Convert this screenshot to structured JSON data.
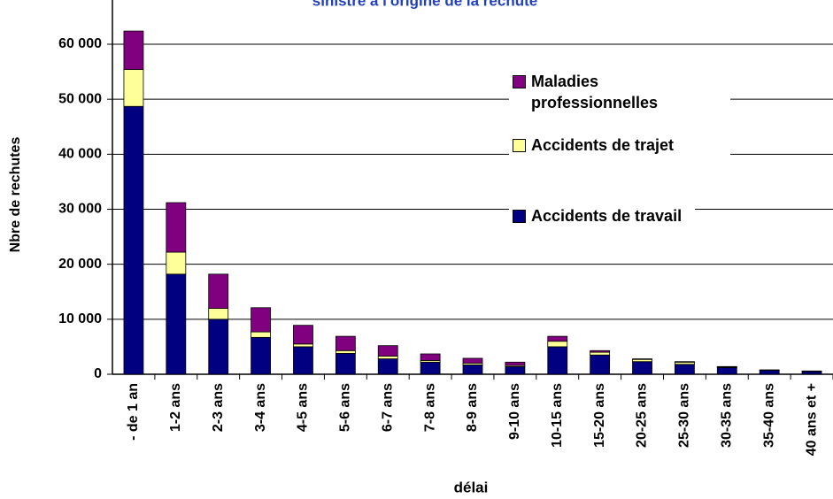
{
  "chart_data": {
    "type": "stacked_bar",
    "title": "sinistre à l'origine de la rechute",
    "x_label": "délai",
    "y_label": "Nbre de rechutes",
    "categories": [
      "- de 1 an",
      "1-2 ans",
      "2-3 ans",
      "3-4 ans",
      "4-5 ans",
      "5-6 ans",
      "6-7 ans",
      "7-8 ans",
      "8-9 ans",
      "9-10 ans",
      "10-15 ans",
      "15-20 ans",
      "20-25 ans",
      "25-30 ans",
      "30-35 ans",
      "35-40 ans",
      "40 ans et +"
    ],
    "series": [
      {
        "name": "Accidents de travail",
        "color": "#000080",
        "values": [
          48700,
          18200,
          10000,
          6700,
          5000,
          3800,
          2800,
          2200,
          1700,
          1400,
          5000,
          3500,
          2300,
          1800,
          1200,
          700,
          500
        ]
      },
      {
        "name": "Accidents de trajet",
        "color": "#ffff99",
        "values": [
          6700,
          4000,
          2000,
          1000,
          500,
          500,
          500,
          300,
          300,
          200,
          1000,
          500,
          400,
          400,
          100,
          50,
          50
        ]
      },
      {
        "name": "Maladies professionnelles",
        "color": "#800080",
        "values": [
          7000,
          9000,
          6200,
          4400,
          3400,
          2600,
          1900,
          1200,
          900,
          600,
          900,
          300,
          100,
          100,
          100,
          50,
          50
        ]
      }
    ],
    "ylim": [
      0,
      70000
    ],
    "yticks": [
      0,
      {
        "value": 10000,
        "label": "10 000"
      },
      {
        "value": 20000,
        "label": "20 000"
      },
      {
        "value": 30000,
        "label": "30 000"
      },
      {
        "value": 40000,
        "label": "40 000"
      },
      {
        "value": 50000,
        "label": "50 000"
      },
      {
        "value": 60000,
        "label": "60 000"
      }
    ],
    "grid": true
  }
}
